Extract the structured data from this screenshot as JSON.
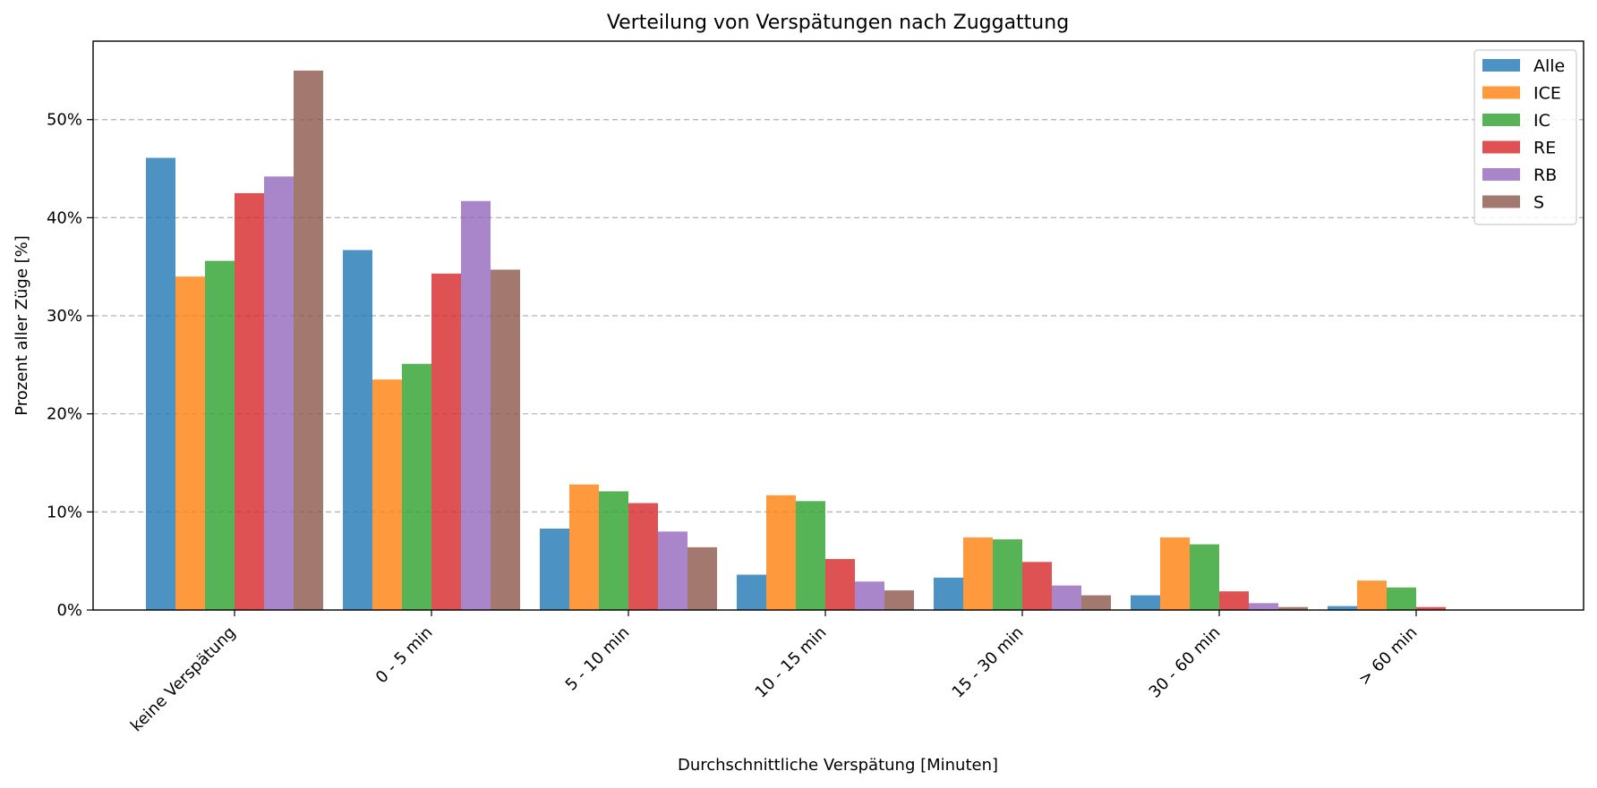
{
  "chart_data": {
    "type": "bar",
    "title": "Verteilung von Verspätungen nach Zuggattung",
    "xlabel": "Durchschnittliche Verspätung [Minuten]",
    "ylabel": "Prozent aller Züge [%]",
    "ylim": [
      0,
      58
    ],
    "yticks": [
      0,
      10,
      20,
      30,
      40,
      50
    ],
    "ytick_labels": [
      "0%",
      "10%",
      "20%",
      "30%",
      "40%",
      "50%"
    ],
    "grid": "y-dashed",
    "legend_position": "top-right",
    "categories": [
      "keine Verspätung",
      "0 - 5 min",
      "5 - 10 min",
      "10 - 15 min",
      "15 - 30 min",
      "30 - 60 min",
      "> 60 min"
    ],
    "series": [
      {
        "name": "Alle",
        "color": "#1f77b4",
        "values": [
          46.1,
          36.7,
          8.3,
          3.6,
          3.3,
          1.5,
          0.4
        ]
      },
      {
        "name": "ICE",
        "color": "#ff7f0e",
        "values": [
          34.0,
          23.5,
          12.8,
          11.7,
          7.4,
          7.4,
          3.0
        ]
      },
      {
        "name": "IC",
        "color": "#2ca02c",
        "values": [
          35.6,
          25.1,
          12.1,
          11.1,
          7.2,
          6.7,
          2.3
        ]
      },
      {
        "name": "RE",
        "color": "#d62728",
        "values": [
          42.5,
          34.3,
          10.9,
          5.2,
          4.9,
          1.9,
          0.3
        ]
      },
      {
        "name": "RB",
        "color": "#9467bd",
        "values": [
          44.2,
          41.7,
          8.0,
          2.9,
          2.5,
          0.7,
          0.0
        ]
      },
      {
        "name": "S",
        "color": "#8c564b",
        "values": [
          55.0,
          34.7,
          6.4,
          2.0,
          1.5,
          0.3,
          0.0
        ]
      }
    ]
  }
}
